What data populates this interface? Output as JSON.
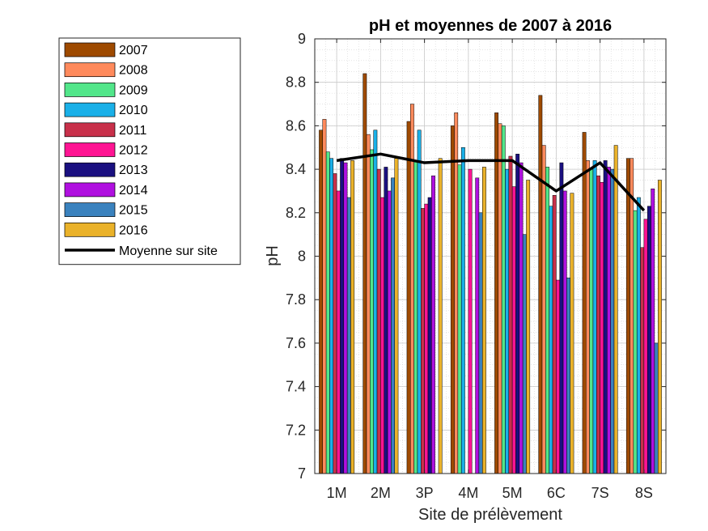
{
  "chart_data": {
    "type": "bar",
    "title": "pH et moyennes de 2007 à 2016",
    "xlabel": "Site de prélèvement",
    "ylabel": "pH",
    "ylim": [
      7,
      9
    ],
    "yticks": [
      "7",
      "7.2",
      "7.4",
      "7.6",
      "7.8",
      "8",
      "8.2",
      "8.4",
      "8.6",
      "8.8",
      "9"
    ],
    "grid": true,
    "legend_position": "outside-left",
    "categories": [
      "1M",
      "2M",
      "3P",
      "4M",
      "5M",
      "6C",
      "7S",
      "8S"
    ],
    "series": [
      {
        "name": "2007",
        "color": "#9e4a00",
        "values": [
          8.58,
          8.84,
          8.62,
          8.6,
          8.66,
          8.74,
          8.57,
          8.45
        ]
      },
      {
        "name": "2008",
        "color": "#ff8a5c",
        "values": [
          8.63,
          8.56,
          8.7,
          8.66,
          8.61,
          8.51,
          8.44,
          8.45
        ]
      },
      {
        "name": "2009",
        "color": "#52e68a",
        "values": [
          8.48,
          8.49,
          8.44,
          8.42,
          8.6,
          8.41,
          8.4,
          8.21
        ]
      },
      {
        "name": "2010",
        "color": "#1ab0e8",
        "values": [
          8.45,
          8.58,
          8.58,
          8.5,
          8.4,
          8.23,
          8.44,
          8.27
        ]
      },
      {
        "name": "2011",
        "color": "#c8304a",
        "values": [
          8.38,
          8.4,
          8.22,
          7.0,
          8.46,
          8.28,
          8.37,
          8.04
        ]
      },
      {
        "name": "2012",
        "color": "#ff1493",
        "values": [
          8.3,
          8.27,
          8.24,
          8.4,
          8.32,
          7.89,
          8.34,
          8.17
        ]
      },
      {
        "name": "2013",
        "color": "#1a1080",
        "values": [
          8.45,
          8.41,
          8.27,
          7.0,
          8.47,
          8.43,
          8.44,
          8.23
        ]
      },
      {
        "name": "2014",
        "color": "#b010e0",
        "values": [
          8.43,
          8.3,
          8.37,
          8.36,
          8.43,
          8.3,
          8.41,
          8.31
        ]
      },
      {
        "name": "2015",
        "color": "#3a82be",
        "values": [
          8.27,
          8.36,
          7.0,
          8.2,
          8.1,
          7.9,
          8.4,
          7.6
        ]
      },
      {
        "name": "2016",
        "color": "#eab22a",
        "values": [
          8.44,
          8.45,
          8.45,
          8.41,
          8.35,
          8.29,
          8.51,
          8.35
        ]
      }
    ],
    "overlay_line": {
      "name": "Moyenne sur site",
      "color": "#000000",
      "values": [
        8.44,
        8.47,
        8.43,
        8.44,
        8.44,
        8.3,
        8.43,
        8.21
      ]
    }
  }
}
